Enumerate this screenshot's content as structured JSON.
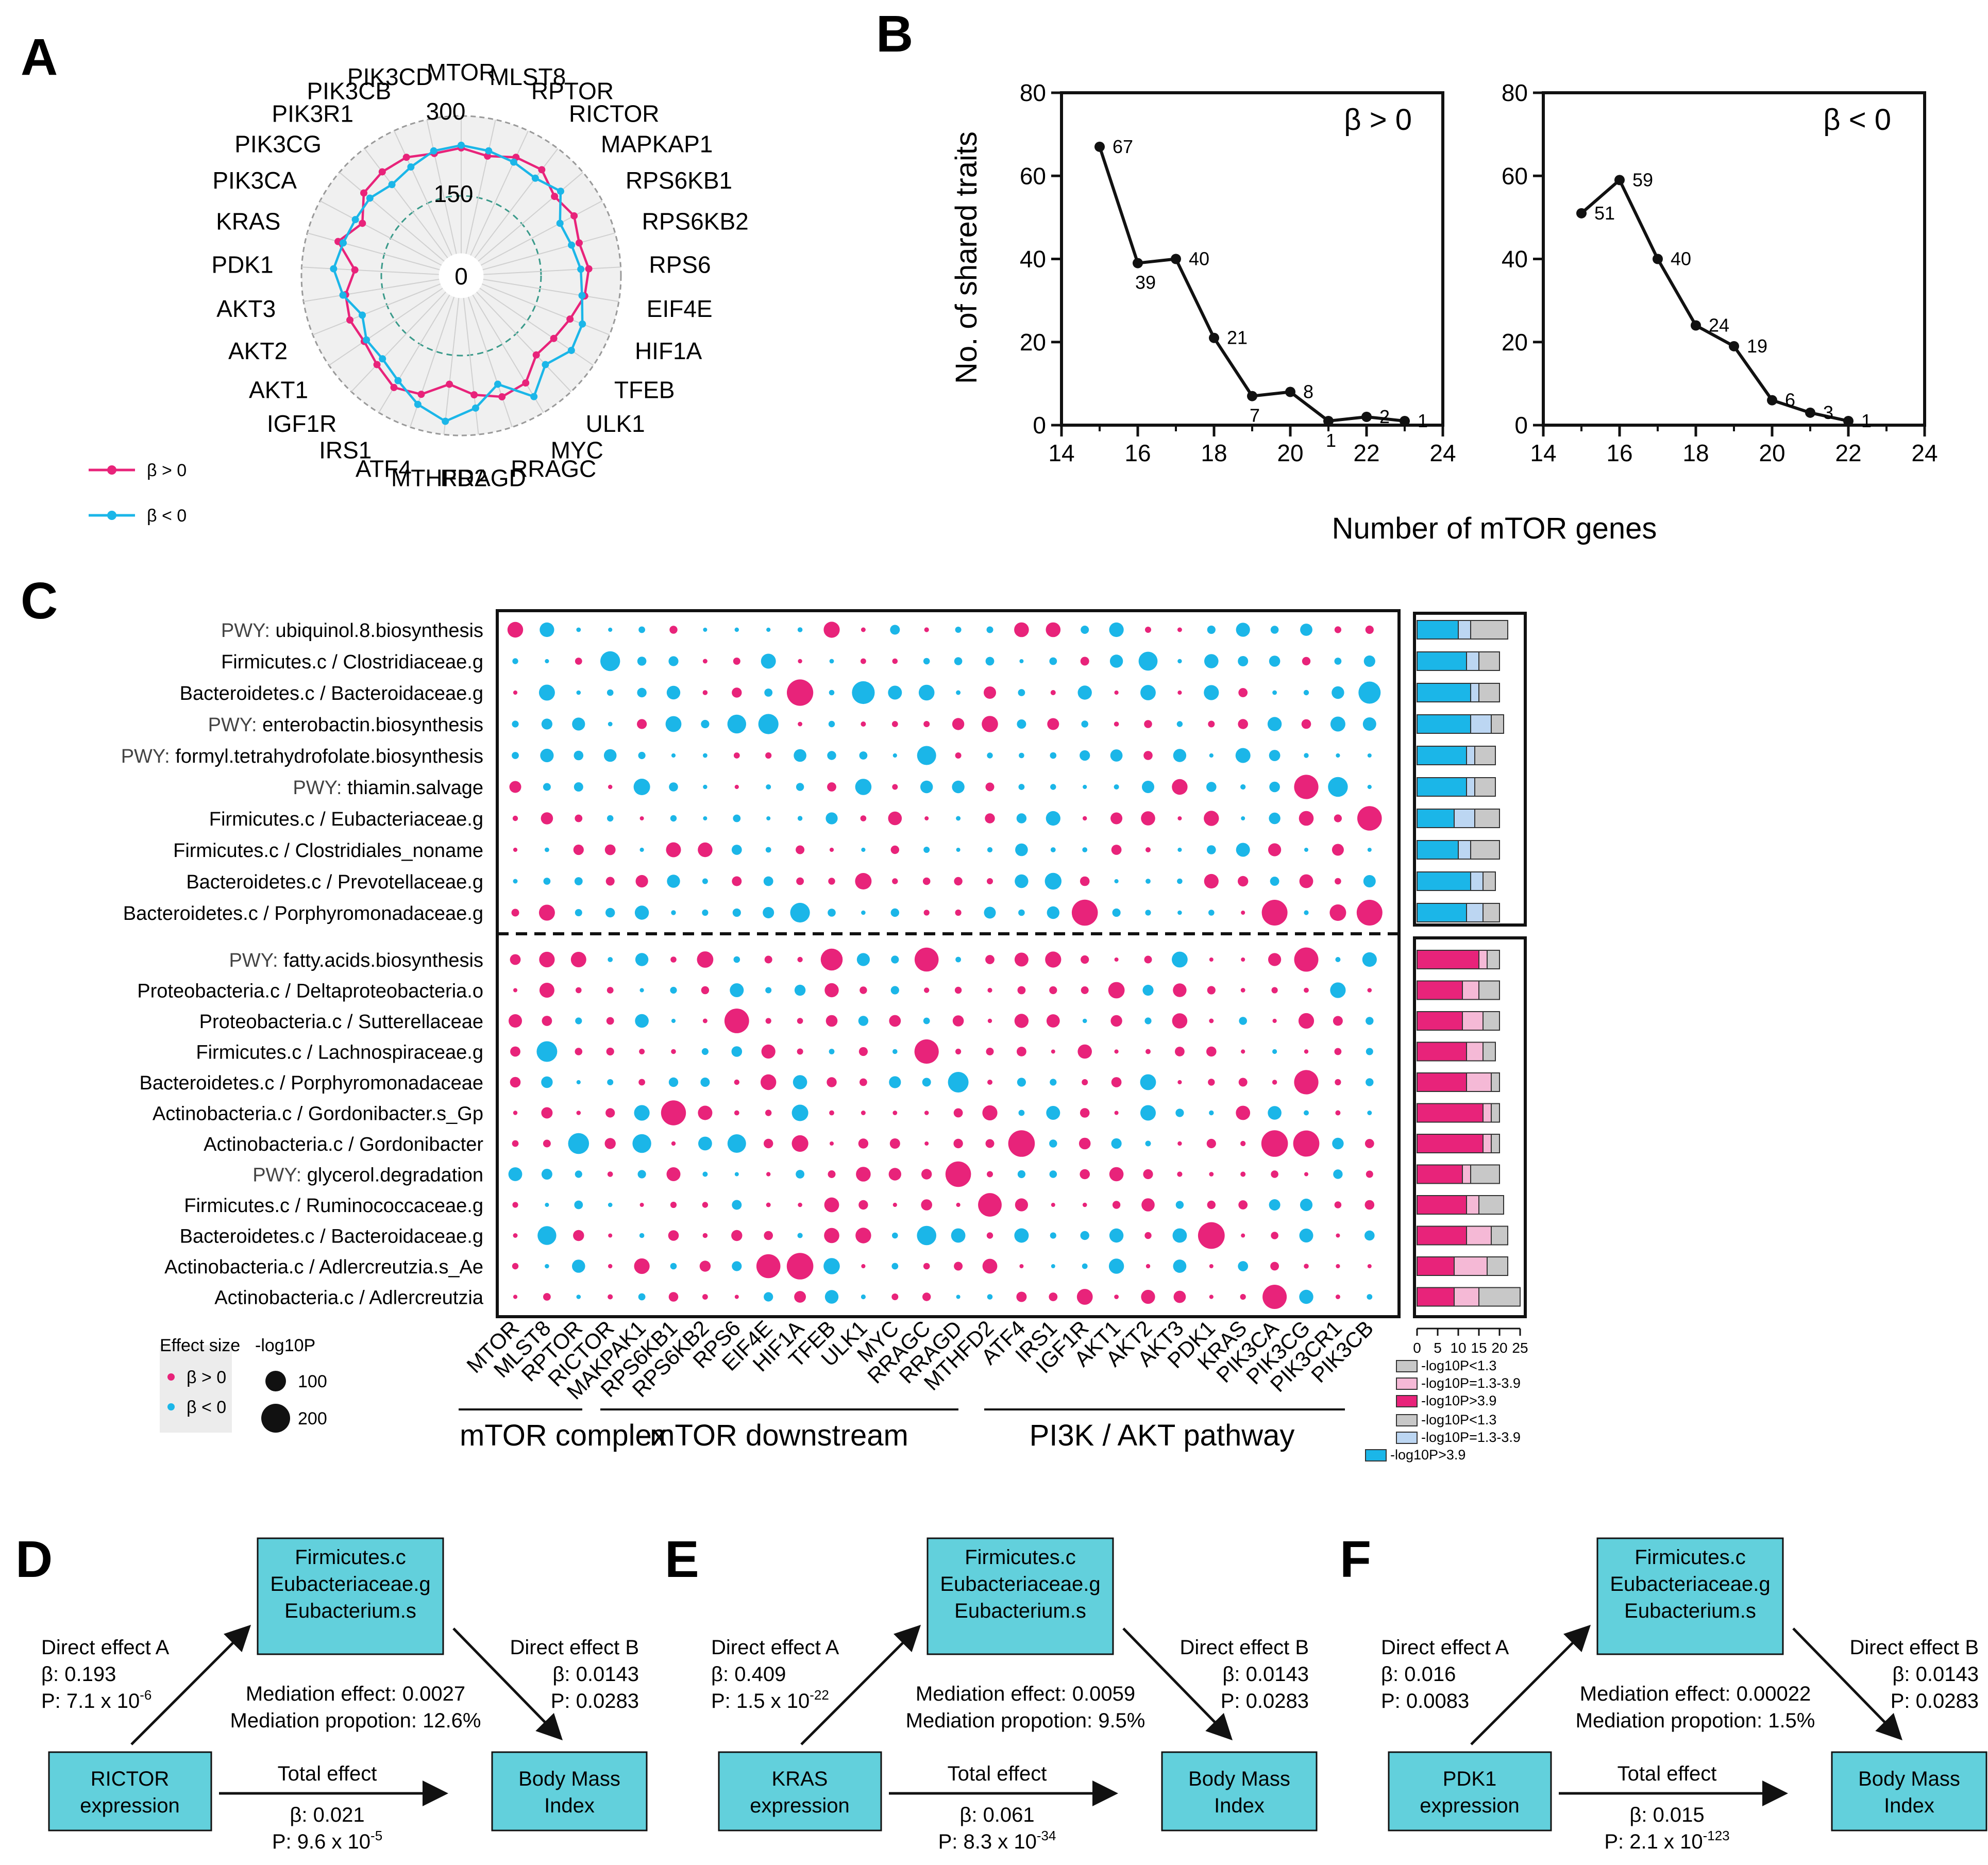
{
  "panels": {
    "a": "A",
    "b": "B",
    "c": "C",
    "d": "D",
    "e": "E",
    "f": "F"
  },
  "colors": {
    "pos": "#e8237a",
    "neg": "#1bb6e8",
    "box": "#62d0dc",
    "grid": "#c8c8c8",
    "gray": "#c8c8c8",
    "lightpink": "#f5b9d6",
    "lightblue": "#bcd6f2"
  },
  "radar": {
    "genes": [
      "MTOR",
      "MLST8",
      "RPTOR",
      "RICTOR",
      "MAPKAP1",
      "RPS6KB1",
      "RPS6KB2",
      "RPS6",
      "EIF4E",
      "HIF1A",
      "TFEB",
      "ULK1",
      "MYC",
      "RRAGC",
      "RRAGD",
      "MTHFD2",
      "ATF4",
      "IRS1",
      "IGF1R",
      "AKT1",
      "AKT2",
      "AKT3",
      "PDK1",
      "KRAS",
      "PIK3CA",
      "PIK3CG",
      "PIK3R1",
      "PIK3CB",
      "PIK3CD"
    ],
    "ticks": [
      "0",
      "150",
      "300"
    ],
    "range": [
      0,
      300
    ],
    "pos_values": [
      240,
      230,
      245,
      250,
      230,
      240,
      230,
      240,
      235,
      220,
      210,
      205,
      235,
      240,
      225,
      205,
      235,
      245,
      230,
      220,
      225,
      220,
      200,
      240,
      210,
      240,
      245,
      245,
      235
    ],
    "neg_values": [
      245,
      240,
      235,
      230,
      245,
      210,
      215,
      225,
      230,
      245,
      250,
      230,
      265,
      215,
      250,
      275,
      255,
      230,
      215,
      215,
      200,
      225,
      240,
      230,
      225,
      225,
      215,
      225,
      240
    ],
    "legend": [
      {
        "label": "β > 0",
        "key": "pos"
      },
      {
        "label": "β < 0",
        "key": "neg"
      }
    ]
  },
  "chart_data": [
    {
      "type": "line",
      "title": "β > 0",
      "xlabel": "Number of mTOR genes",
      "ylabel": "No. of shared traits",
      "x": [
        15,
        16,
        17,
        18,
        19,
        20,
        21,
        22,
        23
      ],
      "y": [
        67,
        39,
        40,
        21,
        7,
        8,
        1,
        2,
        1
      ],
      "labels": [
        "67",
        "39",
        "40",
        "21",
        "7",
        "8",
        "1",
        "2",
        "1"
      ],
      "xlim": [
        14,
        24
      ],
      "ylim": [
        0,
        80
      ],
      "xticks": [
        "14",
        "16",
        "18",
        "20",
        "22",
        "24"
      ],
      "yticks": [
        "0",
        "20",
        "40",
        "60",
        "80"
      ]
    },
    {
      "type": "line",
      "title": "β < 0",
      "xlabel": "Number of mTOR genes",
      "ylabel": "",
      "x": [
        15,
        16,
        17,
        18,
        19,
        20,
        21,
        22
      ],
      "y": [
        51,
        59,
        40,
        24,
        19,
        6,
        3,
        1
      ],
      "labels": [
        "51",
        "59",
        "40",
        "24",
        "19",
        "6",
        "3",
        "1"
      ],
      "xlim": [
        14,
        24
      ],
      "ylim": [
        0,
        80
      ],
      "xticks": [
        "14",
        "16",
        "18",
        "20",
        "22",
        "24"
      ],
      "yticks": [
        "0",
        "20",
        "40",
        "60",
        "80"
      ]
    }
  ],
  "dotplot": {
    "genes": [
      "MTOR",
      "MLST8",
      "RPTOR",
      "RICTOR",
      "MAKPAK1",
      "RPS6KB1",
      "RPS6KB2",
      "RPS6",
      "EIF4E",
      "HIF1A",
      "TFEB",
      "ULK1",
      "MYC",
      "RRAGC",
      "RRAGD",
      "MTHFD2",
      "ATF4",
      "IRS1",
      "IGF1R",
      "AKT1",
      "AKT2",
      "AKT3",
      "PDK1",
      "KRAS",
      "PIK3CA",
      "PIK3CG",
      "PIK3CR1",
      "PIK3CB"
    ],
    "top_rows": [
      {
        "prefix": "PWY: ",
        "name": "ubiquinol.8.biosynthesis",
        "bar": [
          10,
          3,
          9
        ]
      },
      {
        "prefix": "",
        "name": "Firmicutes.c / Clostridiaceae.g",
        "bar": [
          12,
          3,
          5
        ]
      },
      {
        "prefix": "",
        "name": "Bacteroidetes.c / Bacteroidaceae.g",
        "bar": [
          13,
          2,
          5
        ]
      },
      {
        "prefix": "PWY: ",
        "name": "enterobactin.biosynthesis",
        "bar": [
          13,
          5,
          3
        ]
      },
      {
        "prefix": "PWY: ",
        "name": "formyl.tetrahydrofolate.biosynthesis",
        "bar": [
          12,
          2,
          5
        ]
      },
      {
        "prefix": "PWY: ",
        "name": "thiamin.salvage",
        "bar": [
          12,
          2,
          5
        ]
      },
      {
        "prefix": "",
        "name": "Firmicutes.c / Eubacteriaceae.g",
        "bar": [
          9,
          5,
          6
        ]
      },
      {
        "prefix": "",
        "name": "Firmicutes.c / Clostridiales_noname",
        "bar": [
          10,
          3,
          7
        ]
      },
      {
        "prefix": "",
        "name": "Bacteroidetes.c / Prevotellaceae.g",
        "bar": [
          13,
          3,
          3
        ]
      },
      {
        "prefix": "",
        "name": "Bacteroidetes.c / Porphyromonadaceae.g",
        "bar": [
          12,
          4,
          4
        ]
      }
    ],
    "bottom_rows": [
      {
        "prefix": "PWY: ",
        "name": "fatty.acids.biosynthesis",
        "bar": [
          15,
          2,
          3
        ]
      },
      {
        "prefix": "",
        "name": "Proteobacteria.c / Deltaproteobacteria.o",
        "bar": [
          11,
          4,
          5
        ]
      },
      {
        "prefix": "",
        "name": "Proteobacteria.c / Sutterellaceae",
        "bar": [
          11,
          5,
          4
        ]
      },
      {
        "prefix": "",
        "name": "Firmicutes.c / Lachnospiraceae.g",
        "bar": [
          12,
          4,
          3
        ]
      },
      {
        "prefix": "",
        "name": "Bacteroidetes.c / Porphyromonadaceae",
        "bar": [
          12,
          6,
          2
        ]
      },
      {
        "prefix": "",
        "name": "Actinobacteria.c / Gordonibacter.s_Gp",
        "bar": [
          16,
          2,
          2
        ]
      },
      {
        "prefix": "",
        "name": "Actinobacteria.c / Gordonibacter",
        "bar": [
          16,
          2,
          2
        ]
      },
      {
        "prefix": "PWY: ",
        "name": "glycerol.degradation",
        "bar": [
          11,
          2,
          7
        ]
      },
      {
        "prefix": "",
        "name": "Firmicutes.c / Ruminococcaceae.g",
        "bar": [
          12,
          3,
          6
        ]
      },
      {
        "prefix": "",
        "name": "Bacteroidetes.c / Bacteroidaceae.g",
        "bar": [
          12,
          6,
          4
        ]
      },
      {
        "prefix": "",
        "name": "Actinobacteria.c / Adlercreutzia.s_Ae",
        "bar": [
          9,
          8,
          5
        ]
      },
      {
        "prefix": "",
        "name": "Actinobacteria.c / Adlercreutzia",
        "bar": [
          9,
          6,
          10
        ]
      }
    ],
    "bar_axis": [
      "0",
      "5",
      "10",
      "15",
      "20",
      "25"
    ],
    "bar_legend_pos": [
      "-log10P<1.3",
      "-log10P=1.3-3.9",
      "-log10P>3.9"
    ],
    "bar_legend_neg": [
      "-log10P<1.3",
      "-log10P=1.3-3.9",
      "-log10P>3.9"
    ],
    "legend_effect_title": "Effect size",
    "legend_effect": [
      "β > 0",
      "β < 0"
    ],
    "legend_size_title": "-log10P",
    "legend_size": [
      "100",
      "200"
    ],
    "groups": [
      "mTOR complex",
      "mTOR downstream",
      "PI3K / AKT pathway"
    ]
  },
  "mediation": [
    {
      "letter": "D",
      "mediator": [
        "Firmicutes.c",
        "Eubacteriaceae.g",
        "Eubacterium.s"
      ],
      "exposure": [
        "RICTOR",
        "expression"
      ],
      "outcome": [
        "Body Mass",
        "Index"
      ],
      "a_title": "Direct effect A",
      "a_beta": "β: 0.193",
      "a_p": "P: 7.1 x 10",
      "a_exp": "-6",
      "b_title": "Direct effect B",
      "b_beta": "β: 0.0143",
      "b_p": "P: 0.0283",
      "med_effect": "Mediation effect: 0.0027",
      "med_prop": "Mediation propotion: 12.6%",
      "total_title": "Total effect",
      "total_beta": "β: 0.021",
      "total_p": "P: 9.6 x 10",
      "total_exp": "-5"
    },
    {
      "letter": "E",
      "mediator": [
        "Firmicutes.c",
        "Eubacteriaceae.g",
        "Eubacterium.s"
      ],
      "exposure": [
        "KRAS",
        "expression"
      ],
      "outcome": [
        "Body Mass",
        "Index"
      ],
      "a_title": "Direct effect A",
      "a_beta": "β: 0.409",
      "a_p": "P: 1.5 x 10",
      "a_exp": "-22",
      "b_title": "Direct effect B",
      "b_beta": "β: 0.0143",
      "b_p": "P: 0.0283",
      "med_effect": "Mediation effect: 0.0059",
      "med_prop": "Mediation propotion: 9.5%",
      "total_title": "Total effect",
      "total_beta": "β: 0.061",
      "total_p": "P: 8.3 x 10",
      "total_exp": "-34"
    },
    {
      "letter": "F",
      "mediator": [
        "Firmicutes.c",
        "Eubacteriaceae.g",
        "Eubacterium.s"
      ],
      "exposure": [
        "PDK1",
        "expression"
      ],
      "outcome": [
        "Body Mass",
        "Index"
      ],
      "a_title": "Direct effect A",
      "a_beta": "β: 0.016",
      "a_p": "P: 0.0083",
      "a_exp": "",
      "b_title": "Direct effect B",
      "b_beta": "β: 0.0143",
      "b_p": "P: 0.0283",
      "med_effect": "Mediation effect: 0.00022",
      "med_prop": "Mediation propotion: 1.5%",
      "total_title": "Total effect",
      "total_beta": "β: 0.015",
      "total_p": "P: 2.1 x 10",
      "total_exp": "-123"
    }
  ]
}
